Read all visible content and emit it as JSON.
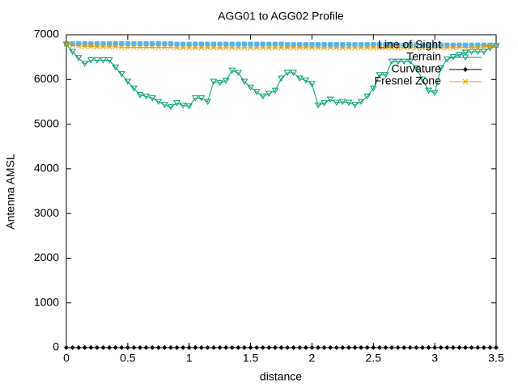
{
  "chart_data": {
    "type": "line",
    "title": "AGG01 to AGG02 Profile",
    "x_label": "distance",
    "y_label": "Antenna AMSL",
    "x": [
      0,
      0.05,
      0.1,
      0.15,
      0.2,
      0.25,
      0.3,
      0.35,
      0.4,
      0.45,
      0.5,
      0.55,
      0.6,
      0.65,
      0.7,
      0.75,
      0.8,
      0.85,
      0.9,
      0.95,
      1,
      1.05,
      1.1,
      1.15,
      1.2,
      1.25,
      1.3,
      1.35,
      1.4,
      1.45,
      1.5,
      1.55,
      1.6,
      1.65,
      1.7,
      1.75,
      1.8,
      1.85,
      1.9,
      1.95,
      2,
      2.05,
      2.1,
      2.15,
      2.2,
      2.25,
      2.3,
      2.35,
      2.4,
      2.45,
      2.5,
      2.55,
      2.6,
      2.65,
      2.7,
      2.75,
      2.8,
      2.85,
      2.9,
      2.95,
      3,
      3.05,
      3.1,
      3.15,
      3.2,
      3.25,
      3.3,
      3.35,
      3.4,
      3.45,
      3.5
    ],
    "series": [
      {
        "name": "Line of Sight",
        "color": "#56b4e9",
        "marker": "square",
        "values": [
          6800,
          6800,
          6800,
          6800,
          6800,
          6800,
          6800,
          6800,
          6800,
          6800,
          6800,
          6800,
          6800,
          6800,
          6800,
          6800,
          6800,
          6800,
          6790,
          6790,
          6790,
          6790,
          6790,
          6790,
          6790,
          6790,
          6790,
          6790,
          6790,
          6790,
          6790,
          6790,
          6790,
          6790,
          6790,
          6790,
          6780,
          6780,
          6780,
          6780,
          6780,
          6780,
          6780,
          6780,
          6780,
          6780,
          6780,
          6780,
          6780,
          6780,
          6780,
          6780,
          6780,
          6780,
          6770,
          6770,
          6770,
          6770,
          6770,
          6770,
          6770,
          6770,
          6770,
          6770,
          6770,
          6770,
          6770,
          6770,
          6770,
          6770,
          6760
        ]
      },
      {
        "name": "Terrain",
        "color": "#009e73",
        "marker": "triangle-down",
        "values": [
          6780,
          6620,
          6480,
          6350,
          6430,
          6430,
          6430,
          6430,
          6270,
          6120,
          5950,
          5800,
          5650,
          5620,
          5580,
          5500,
          5430,
          5380,
          5470,
          5420,
          5400,
          5580,
          5580,
          5500,
          5950,
          5920,
          5970,
          6200,
          6150,
          5950,
          5820,
          5720,
          5620,
          5680,
          5750,
          6020,
          6150,
          6150,
          6020,
          5980,
          5900,
          5420,
          5470,
          5550,
          5480,
          5500,
          5480,
          5430,
          5500,
          5620,
          5800,
          6100,
          6100,
          6400,
          6400,
          6400,
          6400,
          6250,
          6000,
          5750,
          5700,
          6250,
          6450,
          6500,
          6550,
          6600,
          6620,
          6620,
          6620,
          6700,
          6750
        ]
      },
      {
        "name": "Curvature",
        "color": "#000000",
        "marker": "diamond",
        "values": [
          0,
          0,
          0,
          0,
          0,
          0,
          0,
          0,
          0,
          0,
          0,
          0,
          0,
          0,
          0,
          0,
          0,
          0,
          0,
          0,
          0,
          0,
          0,
          0,
          0,
          0,
          0,
          0,
          0,
          0,
          0,
          0,
          0,
          0,
          0,
          0,
          0,
          0,
          0,
          0,
          0,
          0,
          0,
          0,
          0,
          0,
          0,
          0,
          0,
          0,
          0,
          0,
          0,
          0,
          0,
          0,
          0,
          0,
          0,
          0,
          0,
          0,
          0,
          0,
          0,
          0,
          0,
          0,
          0,
          0,
          0
        ]
      },
      {
        "name": "Fresnel Zone",
        "color": "#e69f00",
        "marker": "x",
        "values": [
          6790,
          6760,
          6750,
          6740,
          6740,
          6730,
          6730,
          6730,
          6730,
          6720,
          6720,
          6720,
          6720,
          6720,
          6720,
          6720,
          6720,
          6720,
          6710,
          6710,
          6710,
          6710,
          6710,
          6710,
          6710,
          6710,
          6710,
          6710,
          6710,
          6710,
          6710,
          6710,
          6710,
          6710,
          6710,
          6710,
          6710,
          6710,
          6710,
          6710,
          6710,
          6710,
          6710,
          6710,
          6710,
          6710,
          6710,
          6710,
          6710,
          6710,
          6710,
          6710,
          6710,
          6710,
          6710,
          6710,
          6710,
          6710,
          6710,
          6710,
          6710,
          6710,
          6710,
          6710,
          6720,
          6720,
          6720,
          6720,
          6730,
          6740,
          6760
        ]
      }
    ],
    "xlim": [
      0,
      3.5
    ],
    "ylim": [
      0,
      7000
    ],
    "xticks": [
      0,
      0.5,
      1,
      1.5,
      2,
      2.5,
      3,
      3.5
    ],
    "yticks": [
      0,
      1000,
      2000,
      3000,
      4000,
      5000,
      6000,
      7000
    ],
    "legend": "top-right"
  }
}
